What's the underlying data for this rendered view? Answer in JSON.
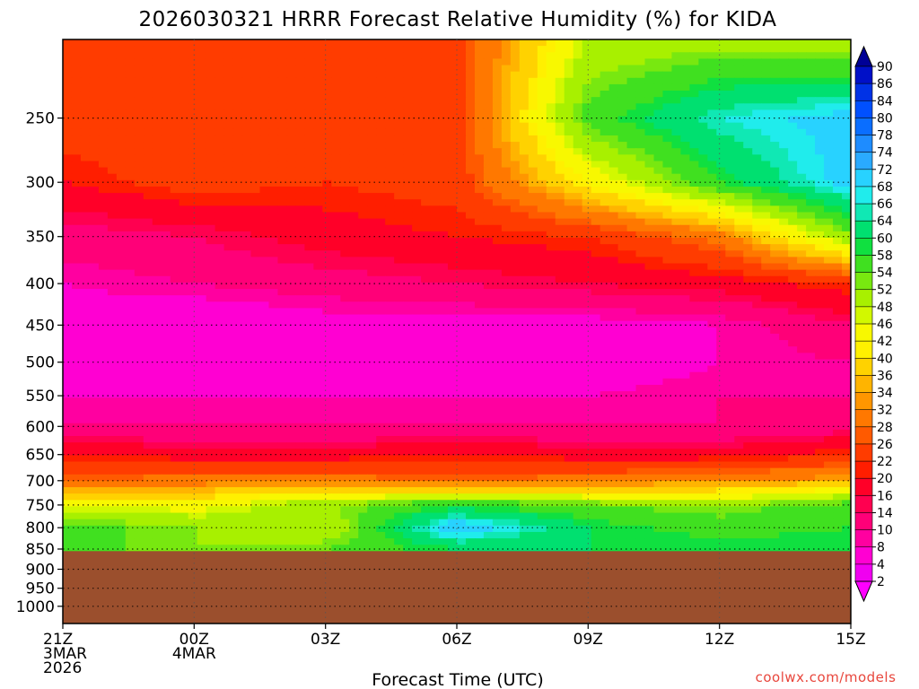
{
  "chart_data": {
    "type": "heatmap",
    "title": "2026030321 HRRR Forecast Relative Humidity (%) for KIDA",
    "xlabel": "Forecast Time (UTC)",
    "ylabel": "",
    "credit": "coolwx.com/models",
    "x_ticks": [
      {
        "value": 0,
        "lines": [
          "21Z",
          "3MAR",
          "2026"
        ]
      },
      {
        "value": 3,
        "lines": [
          "00Z",
          "4MAR"
        ]
      },
      {
        "value": 6,
        "lines": [
          "03Z"
        ]
      },
      {
        "value": 9,
        "lines": [
          "06Z"
        ]
      },
      {
        "value": 12,
        "lines": [
          "09Z"
        ]
      },
      {
        "value": 15,
        "lines": [
          "12Z"
        ]
      },
      {
        "value": 18,
        "lines": [
          "15Z"
        ]
      }
    ],
    "y_ticks": [
      250,
      300,
      350,
      400,
      450,
      500,
      550,
      600,
      650,
      700,
      750,
      800,
      850,
      900,
      950,
      1000
    ],
    "ylim": [
      200,
      1050
    ],
    "y_scale": "log",
    "y_inverted": true,
    "xlim": [
      0,
      18
    ],
    "surface_pressure_hPa": 855,
    "colorbar": {
      "labels": [
        90,
        86,
        84,
        80,
        78,
        74,
        72,
        68,
        66,
        64,
        60,
        58,
        54,
        52,
        48,
        46,
        42,
        40,
        36,
        34,
        32,
        28,
        26,
        22,
        20,
        16,
        14,
        10,
        8,
        4,
        2
      ],
      "colors": [
        "#000096",
        "#0010c8",
        "#0032e6",
        "#0050ff",
        "#0a6eff",
        "#1e8cff",
        "#2aaaff",
        "#28d2ff",
        "#20ecec",
        "#10e8b4",
        "#00e070",
        "#10e040",
        "#40e020",
        "#78e810",
        "#a8f000",
        "#d2f800",
        "#f8f800",
        "#fff000",
        "#ffd200",
        "#ffb400",
        "#ff9600",
        "#ff7800",
        "#ff5a00",
        "#ff3c00",
        "#ff1e00",
        "#ff0028",
        "#ff0050",
        "#ff0078",
        "#ff00a0",
        "#ff00d2",
        "#f000f0",
        "#ff00ff"
      ]
    },
    "rh_samples": {
      "x": [
        0,
        3,
        6,
        9,
        12,
        15,
        18
      ],
      "p": [
        200,
        250,
        300,
        350,
        400,
        450,
        500,
        550,
        600,
        650,
        700,
        750,
        800,
        850
      ],
      "values": [
        [
          22,
          22,
          22,
          24,
          48,
          50,
          48
        ],
        [
          24,
          26,
          23,
          24,
          56,
          66,
          70
        ],
        [
          20,
          24,
          22,
          24,
          42,
          58,
          70
        ],
        [
          12,
          14,
          18,
          20,
          22,
          30,
          52
        ],
        [
          8,
          10,
          12,
          14,
          16,
          18,
          22
        ],
        [
          6,
          4,
          6,
          6,
          6,
          8,
          14
        ],
        [
          6,
          6,
          6,
          6,
          4,
          8,
          10
        ],
        [
          8,
          8,
          8,
          8,
          8,
          10,
          10
        ],
        [
          10,
          10,
          10,
          10,
          10,
          10,
          12
        ],
        [
          20,
          18,
          18,
          20,
          18,
          18,
          22
        ],
        [
          28,
          30,
          30,
          28,
          30,
          32,
          34
        ],
        [
          46,
          44,
          52,
          58,
          54,
          52,
          56
        ],
        [
          56,
          52,
          48,
          72,
          60,
          56,
          58
        ],
        [
          56,
          52,
          54,
          60,
          60,
          60,
          60
        ]
      ]
    }
  }
}
